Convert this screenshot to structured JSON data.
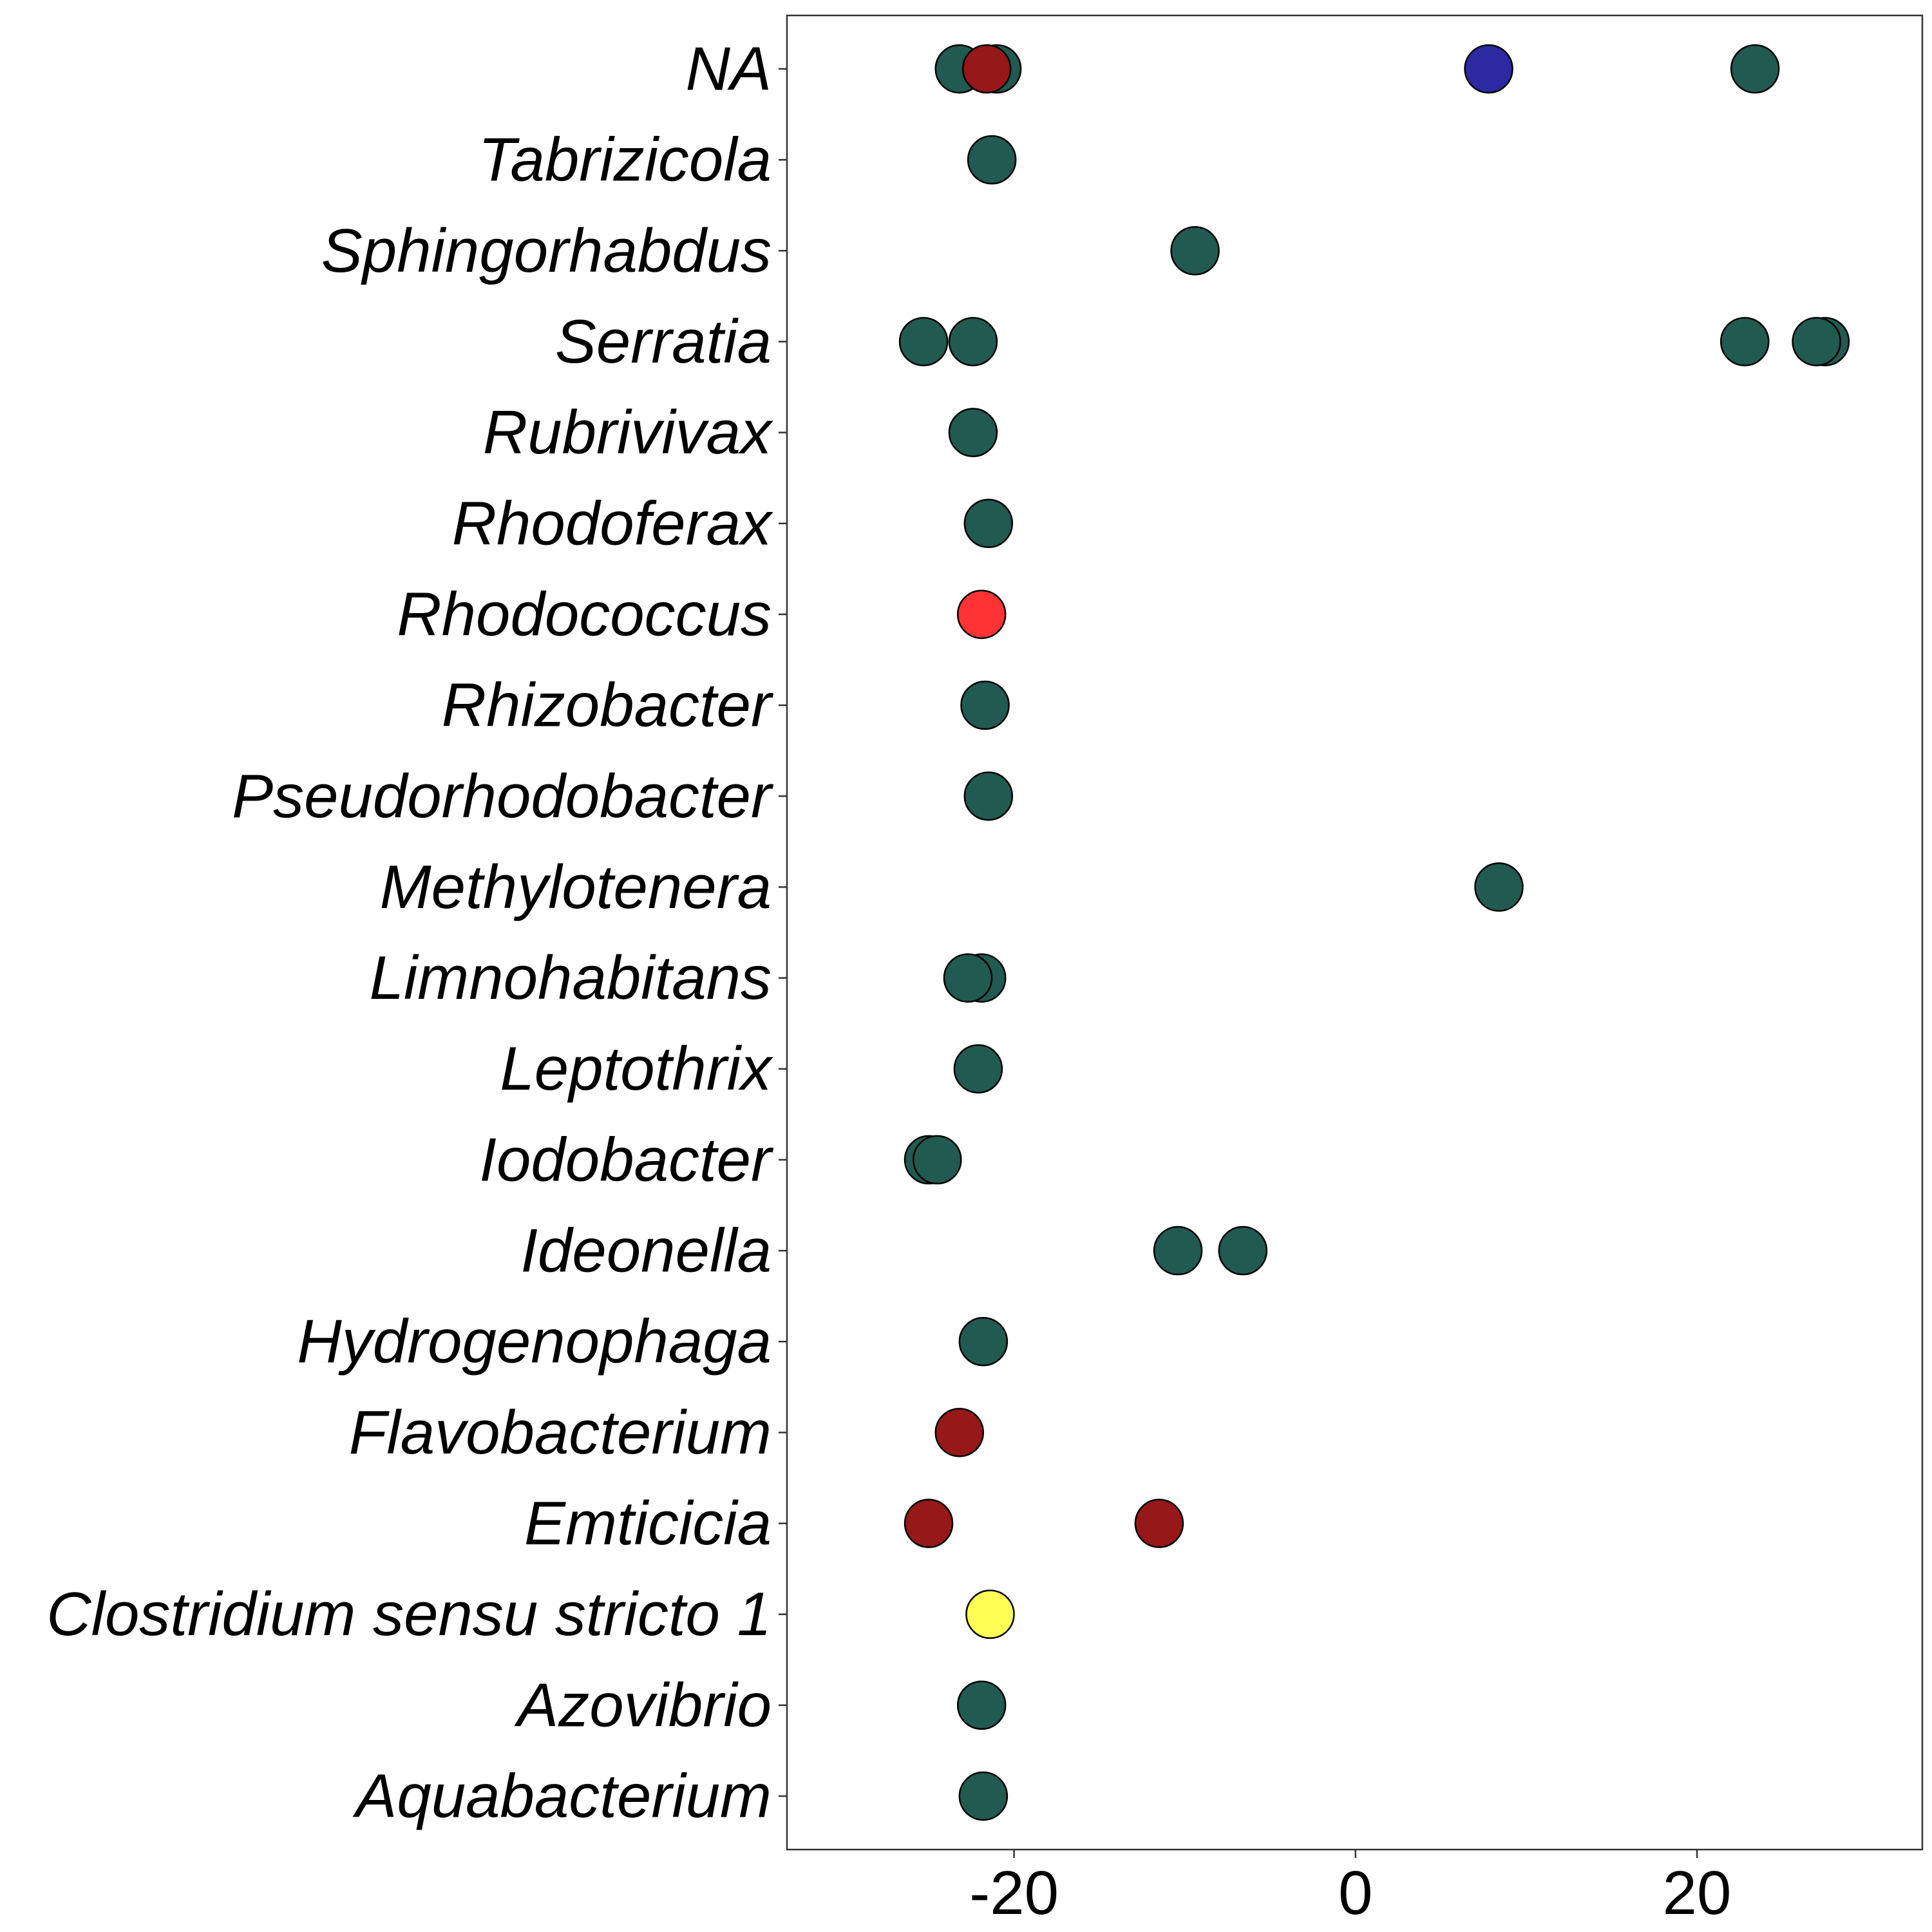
{
  "chart_data": {
    "type": "scatter",
    "title": "",
    "xlabel": "",
    "ylabel": "",
    "xlim": [
      -33.3,
      33.2
    ],
    "x_ticks": [
      -20,
      0,
      20
    ],
    "x_tick_labels": [
      "-20",
      "0",
      "20"
    ],
    "categories": [
      "Aquabacterium",
      "Azovibrio",
      "Clostridium sensu stricto 1",
      "Emticicia",
      "Flavobacterium",
      "Hydrogenophaga",
      "Ideonella",
      "Iodobacter",
      "Leptothrix",
      "Limnohabitans",
      "Methylotenera",
      "Pseudorhodobacter",
      "Rhizobacter",
      "Rhodococcus",
      "Rhodoferax",
      "Rubrivivax",
      "Serratia",
      "Sphingorhabdus",
      "Tabrizicola",
      "NA"
    ],
    "grid": false,
    "legend": "none",
    "colors": {
      "dark_teal": "#215A50",
      "dark_red": "#961818",
      "red": "#FF3333",
      "yellow": "#FFFF55",
      "blue": "#2C29A3"
    },
    "points": [
      {
        "category": "Aquabacterium",
        "x": -21.8,
        "color": "#215A50"
      },
      {
        "category": "Azovibrio",
        "x": -21.9,
        "color": "#215A50"
      },
      {
        "category": "Clostridium sensu stricto 1",
        "x": -21.4,
        "color": "#FFFF55"
      },
      {
        "category": "Emticicia",
        "x": -25.0,
        "color": "#961818"
      },
      {
        "category": "Emticicia",
        "x": -11.5,
        "color": "#961818"
      },
      {
        "category": "Flavobacterium",
        "x": -23.2,
        "color": "#961818"
      },
      {
        "category": "Hydrogenophaga",
        "x": -21.8,
        "color": "#215A50"
      },
      {
        "category": "Ideonella",
        "x": -10.4,
        "color": "#215A50"
      },
      {
        "category": "Ideonella",
        "x": -6.6,
        "color": "#215A50"
      },
      {
        "category": "Iodobacter",
        "x": -25.0,
        "color": "#215A50"
      },
      {
        "category": "Iodobacter",
        "x": -24.5,
        "color": "#215A50"
      },
      {
        "category": "Leptothrix",
        "x": -22.1,
        "color": "#215A50"
      },
      {
        "category": "Limnohabitans",
        "x": -21.9,
        "color": "#215A50"
      },
      {
        "category": "Limnohabitans",
        "x": -22.7,
        "color": "#215A50"
      },
      {
        "category": "Methylotenera",
        "x": 8.4,
        "color": "#215A50"
      },
      {
        "category": "Pseudorhodobacter",
        "x": -21.5,
        "color": "#215A50"
      },
      {
        "category": "Rhizobacter",
        "x": -21.7,
        "color": "#215A50"
      },
      {
        "category": "Rhodococcus",
        "x": -21.9,
        "color": "#FF3333"
      },
      {
        "category": "Rhodoferax",
        "x": -21.5,
        "color": "#215A50"
      },
      {
        "category": "Rubrivivax",
        "x": -22.4,
        "color": "#215A50"
      },
      {
        "category": "Serratia",
        "x": -25.3,
        "color": "#215A50"
      },
      {
        "category": "Serratia",
        "x": -22.4,
        "color": "#215A50"
      },
      {
        "category": "Serratia",
        "x": 22.8,
        "color": "#215A50"
      },
      {
        "category": "Serratia",
        "x": 27.5,
        "color": "#215A50"
      },
      {
        "category": "Serratia",
        "x": 27.0,
        "color": "#215A50"
      },
      {
        "category": "Sphingorhabdus",
        "x": -9.4,
        "color": "#215A50"
      },
      {
        "category": "Tabrizicola",
        "x": -21.3,
        "color": "#215A50"
      },
      {
        "category": "NA",
        "x": -23.2,
        "color": "#215A50"
      },
      {
        "category": "NA",
        "x": -21.0,
        "color": "#215A50"
      },
      {
        "category": "NA",
        "x": 7.8,
        "color": "#2C29A3"
      },
      {
        "category": "NA",
        "x": 23.4,
        "color": "#215A50"
      },
      {
        "category": "NA",
        "x": -21.6,
        "color": "#961818"
      }
    ]
  }
}
